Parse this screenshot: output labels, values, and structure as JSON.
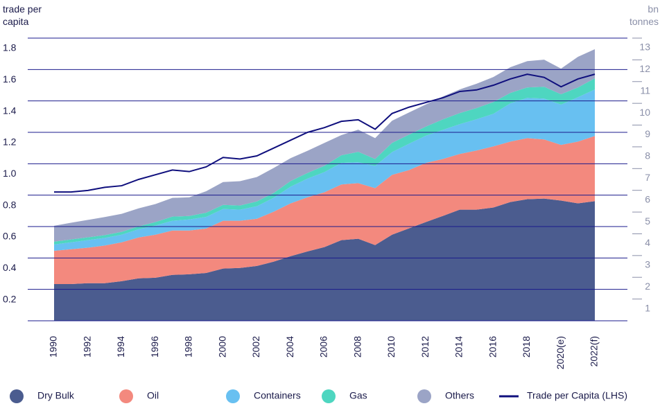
{
  "chart_data": {
    "type": "stacked_area_line",
    "y_label": "trade per capita",
    "y2_label": "bn tonnes",
    "categories": [
      "1990",
      null,
      "1992",
      null,
      "1994",
      null,
      "1996",
      null,
      "1998",
      null,
      "2000",
      null,
      "2002",
      null,
      "2004",
      null,
      "2006",
      null,
      "2008",
      null,
      "2010",
      null,
      "2012",
      null,
      "2014",
      null,
      "2016",
      null,
      "2018",
      null,
      "2020(e)",
      null,
      "2022(f)"
    ],
    "ylim": [
      0,
      1.8
    ],
    "yticks": [
      0.2,
      0.4,
      0.6,
      0.8,
      {
        "value": 1,
        "label": "1.0"
      },
      1.2,
      1.4,
      1.6,
      1.8
    ],
    "y2lim": [
      0,
      13
    ],
    "y2ticks": [
      1,
      2,
      3,
      4,
      5,
      6,
      7,
      8,
      9,
      10,
      11,
      12,
      13
    ],
    "grid": true,
    "legend": "bottom",
    "series": [
      {
        "name": "Dry Bulk",
        "color": "#4b5c8f",
        "axis": "y2",
        "values": [
          1.69,
          1.69,
          1.73,
          1.73,
          1.82,
          1.95,
          1.98,
          2.11,
          2.14,
          2.2,
          2.4,
          2.43,
          2.52,
          2.72,
          2.97,
          3.19,
          3.39,
          3.71,
          3.77,
          3.48,
          3.96,
          4.25,
          4.54,
          4.82,
          5.11,
          5.11,
          5.21,
          5.46,
          5.59,
          5.62,
          5.53,
          5.4,
          5.5
        ]
      },
      {
        "name": "Oil",
        "color": "#f3897e",
        "axis": "y2",
        "values": [
          1.53,
          1.6,
          1.63,
          1.73,
          1.79,
          1.88,
          1.98,
          2.04,
          2.01,
          2.04,
          2.2,
          2.17,
          2.17,
          2.3,
          2.43,
          2.49,
          2.52,
          2.56,
          2.56,
          2.62,
          2.75,
          2.68,
          2.72,
          2.62,
          2.56,
          2.72,
          2.81,
          2.78,
          2.81,
          2.72,
          2.56,
          2.84,
          3.0
        ]
      },
      {
        "name": "Containers",
        "color": "#68c0f1",
        "axis": "y2",
        "values": [
          0.29,
          0.32,
          0.35,
          0.35,
          0.35,
          0.38,
          0.42,
          0.45,
          0.51,
          0.54,
          0.54,
          0.51,
          0.58,
          0.64,
          0.77,
          0.86,
          0.93,
          0.99,
          0.96,
          1.02,
          1.05,
          1.21,
          1.25,
          1.34,
          1.37,
          1.44,
          1.5,
          1.76,
          1.85,
          1.88,
          1.85,
          2.04,
          2.14
        ]
      },
      {
        "name": "Gas",
        "color": "#4ed6c0",
        "axis": "y2",
        "values": [
          0.13,
          0.13,
          0.13,
          0.13,
          0.13,
          0.13,
          0.16,
          0.19,
          0.16,
          0.19,
          0.19,
          0.19,
          0.22,
          0.22,
          0.26,
          0.26,
          0.29,
          0.35,
          0.48,
          0.32,
          0.42,
          0.42,
          0.42,
          0.48,
          0.51,
          0.51,
          0.54,
          0.48,
          0.48,
          0.54,
          0.48,
          0.45,
          0.51
        ]
      },
      {
        "name": "Others",
        "color": "#9ba4c6",
        "axis": "y2",
        "values": [
          0.73,
          0.77,
          0.8,
          0.83,
          0.83,
          0.83,
          0.83,
          0.86,
          0.86,
          0.99,
          1.05,
          1.12,
          1.12,
          1.15,
          1.05,
          1.02,
          1.05,
          0.93,
          1.02,
          0.96,
          1.02,
          1.02,
          1.02,
          1.05,
          1.09,
          1.12,
          1.15,
          1.18,
          1.21,
          1.25,
          1.18,
          1.41,
          1.34
        ]
      },
      {
        "name": "Trade per Capita (LHS)",
        "color": "#0f0f7d",
        "axis": "y",
        "values": [
          0.82,
          0.82,
          0.83,
          0.85,
          0.86,
          0.9,
          0.93,
          0.96,
          0.95,
          0.98,
          1.04,
          1.03,
          1.05,
          1.1,
          1.15,
          1.2,
          1.23,
          1.27,
          1.28,
          1.22,
          1.32,
          1.36,
          1.39,
          1.42,
          1.46,
          1.47,
          1.5,
          1.54,
          1.57,
          1.55,
          1.49,
          1.54,
          1.57
        ]
      }
    ]
  }
}
